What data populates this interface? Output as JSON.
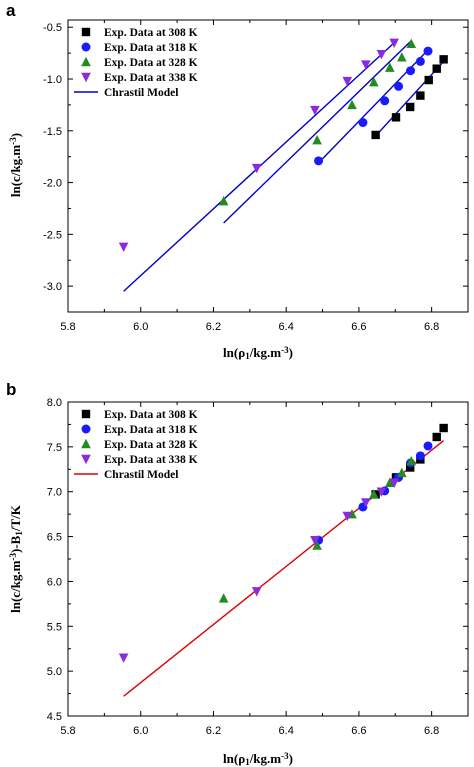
{
  "chart_data": [
    {
      "panel": "a",
      "type": "scatter",
      "x_label": "ln(ρ₁/kg.m⁻³)",
      "y_label": "ln(c/kg.m⁻³)",
      "xlim": [
        5.8,
        6.9
      ],
      "ylim": [
        -3.25,
        -0.43
      ],
      "x_ticks": [
        5.8,
        6.0,
        6.2,
        6.4,
        6.6,
        6.8
      ],
      "x_tick_labels": [
        "5.8",
        "6.0",
        "6.2",
        "6.4",
        "6.6",
        "6.8"
      ],
      "y_ticks": [
        -3.0,
        -2.5,
        -2.0,
        -1.5,
        -1.0,
        -0.5
      ],
      "y_tick_labels": [
        "-3.0",
        "-2.5",
        "-2.0",
        "-1.5",
        "-1.0",
        "-0.5"
      ],
      "legend_position": "top-left",
      "series": [
        {
          "name": "Exp. Data at 308 K",
          "marker": "square",
          "color": "#000000",
          "points": [
            [
              6.646,
              -1.54
            ],
            [
              6.702,
              -1.37
            ],
            [
              6.741,
              -1.27
            ],
            [
              6.769,
              -1.16
            ],
            [
              6.792,
              -1.01
            ],
            [
              6.814,
              -0.9
            ],
            [
              6.833,
              -0.81
            ]
          ]
        },
        {
          "name": "Exp. Data at 318 K",
          "marker": "circle",
          "color": "#1a1aff",
          "points": [
            [
              6.489,
              -1.79
            ],
            [
              6.611,
              -1.42
            ],
            [
              6.671,
              -1.21
            ],
            [
              6.709,
              -1.07
            ],
            [
              6.742,
              -0.92
            ],
            [
              6.769,
              -0.83
            ],
            [
              6.79,
              -0.73
            ]
          ]
        },
        {
          "name": "Exp. Data at 328 K",
          "marker": "triangle-up",
          "color": "#228b22",
          "points": [
            [
              6.228,
              -2.18
            ],
            [
              6.485,
              -1.59
            ],
            [
              6.581,
              -1.25
            ],
            [
              6.641,
              -1.03
            ],
            [
              6.685,
              -0.89
            ],
            [
              6.718,
              -0.79
            ],
            [
              6.744,
              -0.66
            ]
          ]
        },
        {
          "name": "Exp. Data at 338 K",
          "marker": "triangle-down",
          "color": "#8a2be2",
          "points": [
            [
              5.953,
              -2.62
            ],
            [
              6.319,
              -1.86
            ],
            [
              6.479,
              -1.3
            ],
            [
              6.568,
              -1.02
            ],
            [
              6.619,
              -0.86
            ],
            [
              6.662,
              -0.76
            ],
            [
              6.697,
              -0.65
            ]
          ]
        }
      ],
      "model": {
        "name": "Chrastil Model",
        "color": "#0000cd",
        "lines": [
          [
            [
              6.646,
              -1.55
            ],
            [
              6.833,
              -0.83
            ]
          ],
          [
            [
              6.489,
              -1.81
            ],
            [
              6.79,
              -0.72
            ]
          ],
          [
            [
              6.228,
              -2.39
            ],
            [
              6.744,
              -0.63
            ]
          ],
          [
            [
              5.953,
              -3.05
            ],
            [
              6.697,
              -0.65
            ]
          ]
        ]
      }
    },
    {
      "panel": "b",
      "type": "scatter",
      "x_label": "ln(ρ₁/kg.m⁻³)",
      "y_label": "ln(c/kg.m⁻³)-B₁/T/K",
      "xlim": [
        5.8,
        6.9
      ],
      "ylim": [
        4.5,
        8.0
      ],
      "x_ticks": [
        5.8,
        6.0,
        6.2,
        6.4,
        6.6,
        6.8
      ],
      "x_tick_labels": [
        "5.8",
        "6.0",
        "6.2",
        "6.4",
        "6.6",
        "6.8"
      ],
      "y_ticks": [
        4.5,
        5.0,
        5.5,
        6.0,
        6.5,
        7.0,
        7.5,
        8.0
      ],
      "y_tick_labels": [
        "4.5",
        "5.0",
        "5.5",
        "6.0",
        "6.5",
        "7.0",
        "7.5",
        "8.0"
      ],
      "legend_position": "top-left",
      "series": [
        {
          "name": "Exp. Data at 308 K",
          "marker": "square",
          "color": "#000000",
          "points": [
            [
              6.646,
              6.97
            ],
            [
              6.702,
              7.16
            ],
            [
              6.741,
              7.27
            ],
            [
              6.769,
              7.36
            ],
            [
              6.814,
              7.61
            ],
            [
              6.833,
              7.71
            ]
          ]
        },
        {
          "name": "Exp. Data at 318 K",
          "marker": "circle",
          "color": "#1a1aff",
          "points": [
            [
              6.489,
              6.46
            ],
            [
              6.611,
              6.83
            ],
            [
              6.671,
              7.01
            ],
            [
              6.709,
              7.16
            ],
            [
              6.742,
              7.32
            ],
            [
              6.769,
              7.4
            ],
            [
              6.79,
              7.51
            ]
          ]
        },
        {
          "name": "Exp. Data at 328 K",
          "marker": "triangle-up",
          "color": "#228b22",
          "points": [
            [
              6.228,
              5.81
            ],
            [
              6.485,
              6.4
            ],
            [
              6.581,
              6.75
            ],
            [
              6.641,
              6.97
            ],
            [
              6.685,
              7.1
            ],
            [
              6.718,
              7.21
            ],
            [
              6.744,
              7.34
            ]
          ]
        },
        {
          "name": "Exp. Data at 338 K",
          "marker": "triangle-down",
          "color": "#8a2be2",
          "points": [
            [
              5.953,
              5.15
            ],
            [
              6.319,
              5.89
            ],
            [
              6.479,
              6.46
            ],
            [
              6.568,
              6.73
            ],
            [
              6.619,
              6.88
            ],
            [
              6.662,
              7.0
            ],
            [
              6.697,
              7.1
            ]
          ]
        }
      ],
      "model": {
        "name": "Chrastil Model",
        "color": "#e00000",
        "lines": [
          [
            [
              5.953,
              4.72
            ],
            [
              6.833,
              7.57
            ]
          ]
        ]
      }
    }
  ],
  "panels": {
    "a": {
      "letter": "a"
    },
    "b": {
      "letter": "b"
    }
  }
}
